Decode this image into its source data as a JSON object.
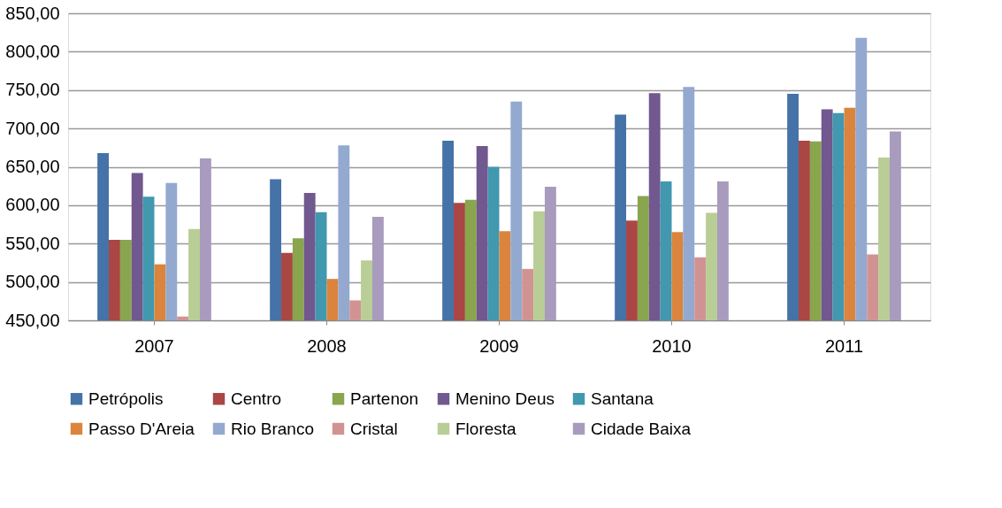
{
  "chart_data": {
    "type": "bar",
    "categories": [
      "2007",
      "2008",
      "2009",
      "2010",
      "2011"
    ],
    "series": [
      {
        "name": "Petrópolis",
        "color": "#4572a7",
        "values": [
          668,
          634,
          684,
          718,
          745
        ]
      },
      {
        "name": "Centro",
        "color": "#aa4643",
        "values": [
          555,
          538,
          603,
          580,
          684
        ]
      },
      {
        "name": "Partenon",
        "color": "#89a54e",
        "values": [
          555,
          557,
          607,
          612,
          683
        ]
      },
      {
        "name": "Menino Deus",
        "color": "#71588f",
        "values": [
          642,
          616,
          677,
          746,
          725
        ]
      },
      {
        "name": "Santana",
        "color": "#4198af",
        "values": [
          611,
          591,
          650,
          631,
          720
        ]
      },
      {
        "name": "Passo D'Areia",
        "color": "#db843d",
        "values": [
          523,
          504,
          566,
          565,
          727
        ]
      },
      {
        "name": "Rio Branco",
        "color": "#93a9cf",
        "values": [
          629,
          678,
          735,
          754,
          818
        ]
      },
      {
        "name": "Cristal",
        "color": "#d19392",
        "values": [
          455,
          476,
          517,
          532,
          536
        ]
      },
      {
        "name": "Floresta",
        "color": "#b9cd96",
        "values": [
          569,
          528,
          592,
          590,
          662
        ]
      },
      {
        "name": "Cidade Baixa",
        "color": "#a99bbd",
        "values": [
          661,
          585,
          624,
          631,
          696
        ]
      }
    ],
    "ylim": [
      450,
      850
    ],
    "yticks": [
      {
        "value": 450,
        "label": "450,00"
      },
      {
        "value": 500,
        "label": "500,00"
      },
      {
        "value": 550,
        "label": "550,00"
      },
      {
        "value": 600,
        "label": "600,00"
      },
      {
        "value": 650,
        "label": "650,00"
      },
      {
        "value": 700,
        "label": "700,00"
      },
      {
        "value": 750,
        "label": "750,00"
      },
      {
        "value": 800,
        "label": "800,00"
      },
      {
        "value": 850,
        "label": "850,00"
      }
    ],
    "grid": "y",
    "legend": "bottom"
  }
}
